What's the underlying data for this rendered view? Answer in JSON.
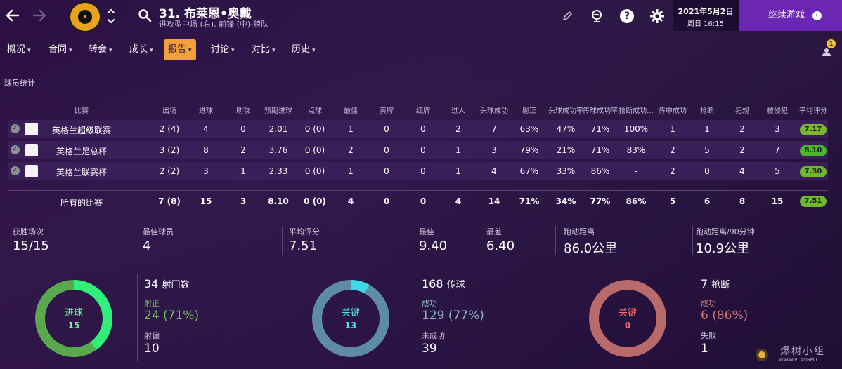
{
  "header": {
    "player_name": "31. 布莱恩•奥戴",
    "player_sub": "进攻型中场 (右), 前锋 (中)-狼队",
    "date_main": "2021年5月2日",
    "date_sub": "周日 16:15",
    "continue_label": "继续游戏",
    "notification_count": "1"
  },
  "menu": [
    {
      "label": "概况"
    },
    {
      "label": "合同"
    },
    {
      "label": "转会"
    },
    {
      "label": "成长"
    },
    {
      "label": "报告",
      "active": true
    },
    {
      "label": "讨论"
    },
    {
      "label": "对比"
    },
    {
      "label": "历史"
    }
  ],
  "section_title": "球员统计",
  "table": {
    "headers": [
      "比赛",
      "出场",
      "进球",
      "助攻",
      "预期进球",
      "点球",
      "最佳",
      "黄牌",
      "红牌",
      "过人",
      "头球成功",
      "射正",
      "头球成功率",
      "传球成功率",
      "抢断成功...",
      "传中成功",
      "抢断",
      "犯规",
      "被侵犯",
      "平均评分"
    ],
    "rows": [
      {
        "comp": "英格兰超级联赛",
        "cells": [
          "2 (4)",
          "4",
          "0",
          "2.01",
          "0 (0)",
          "1",
          "0",
          "0",
          "2",
          "7",
          "63%",
          "47%",
          "71%",
          "100%",
          "1",
          "1",
          "2",
          "3"
        ],
        "rating": "7.17",
        "rating_color": "#7cb82f"
      },
      {
        "comp": "英格兰足总杯",
        "cells": [
          "3 (2)",
          "8",
          "2",
          "3.76",
          "0 (0)",
          "2",
          "0",
          "0",
          "1",
          "3",
          "79%",
          "21%",
          "71%",
          "83%",
          "2",
          "5",
          "2",
          "7"
        ],
        "rating": "8.10",
        "rating_color": "#4ab82a"
      },
      {
        "comp": "英格兰联赛杯",
        "cells": [
          "2 (2)",
          "3",
          "1",
          "2.33",
          "0 (0)",
          "1",
          "0",
          "0",
          "1",
          "4",
          "67%",
          "33%",
          "86%",
          "-",
          "2",
          "0",
          "4",
          "5"
        ],
        "rating": "7.30",
        "rating_color": "#6db82d"
      }
    ],
    "total": {
      "label": "所有的比赛",
      "cells": [
        "7 (8)",
        "15",
        "3",
        "8.10",
        "0 (0)",
        "4",
        "0",
        "0",
        "4",
        "14",
        "71%",
        "34%",
        "77%",
        "86%",
        "5",
        "6",
        "8",
        "15"
      ],
      "rating": "7.51",
      "rating_color": "#6db82d"
    }
  },
  "summary": [
    {
      "label": "获胜场次",
      "value": "15/15"
    },
    {
      "label": "最佳球员",
      "value": "4"
    },
    {
      "label": "平均评分",
      "value": "7.51"
    },
    {
      "label": "最佳",
      "value": "9.40"
    },
    {
      "label": "最差",
      "value": "6.40"
    },
    {
      "label": "跑动距离",
      "value": "86.0公里"
    },
    {
      "label": "跑动距离/90分钟",
      "value": "10.9公里"
    }
  ],
  "donuts": [
    {
      "center_label": "进球",
      "center_value": "15",
      "fraction": 0.4,
      "ring_color": "#5aa84e",
      "arc_color": "#2ef07a",
      "label_color": "#6ef2a0",
      "big_value": "34",
      "big_unit": "射门数",
      "l1": "射正",
      "v1": "24 (71%)",
      "c1": "#6fbf5a",
      "l2": "射偏",
      "v2": "10",
      "c2": "#ffffff"
    },
    {
      "center_label": "关键",
      "center_value": "13",
      "fraction": 0.08,
      "ring_color": "#5e8ba8",
      "arc_color": "#3fd8e6",
      "label_color": "#4fe2ee",
      "big_value": "168",
      "big_unit": "传球",
      "l1": "成功",
      "v1": "129 (77%)",
      "c1": "#8fb2c8",
      "l2": "未成功",
      "v2": "39",
      "c2": "#ffffff"
    },
    {
      "center_label": "关键",
      "center_value": "0",
      "fraction": 0,
      "ring_color": "#b96a6a",
      "arc_color": "#ff5a5a",
      "label_color": "#ff7070",
      "big_value": "7",
      "big_unit": "抢断",
      "l1": "成功",
      "v1": "6 (86%)",
      "c1": "#d07777",
      "l2": "失败",
      "v2": "1",
      "c2": "#ffffff"
    }
  ],
  "watermark": {
    "text": "爆树小组",
    "sub": "WWW.PLAYGM.CC"
  }
}
